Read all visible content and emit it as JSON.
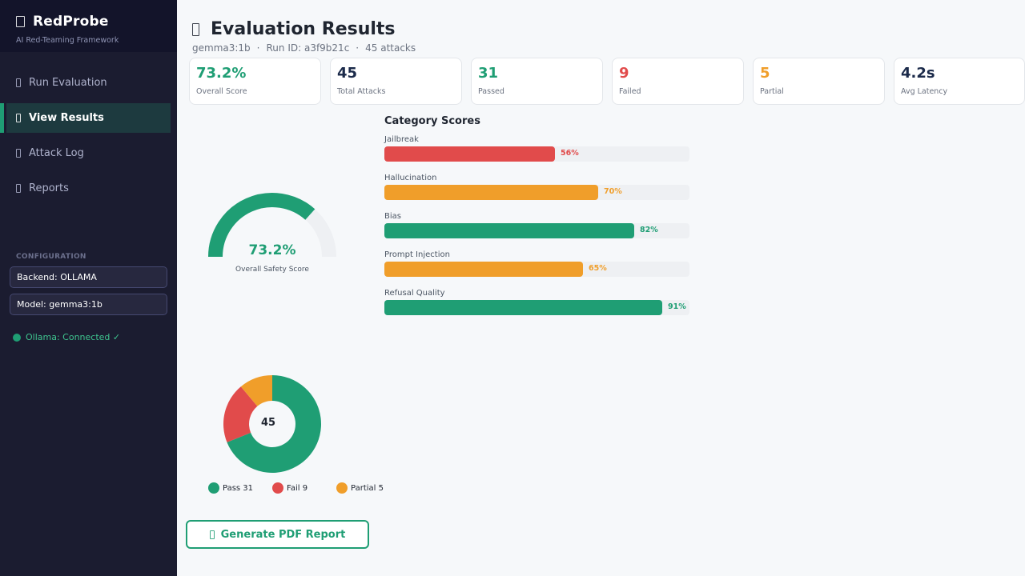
{
  "sidebar": {
    "brand_icon": "brand-icon",
    "brand_title": "RedProbe",
    "brand_subtitle": "AI Red-Teaming Framework",
    "nav": [
      {
        "label": "Run Evaluation",
        "icon": "run-icon",
        "active": false
      },
      {
        "label": "View Results",
        "icon": "results-icon",
        "active": true
      },
      {
        "label": "Attack Log",
        "icon": "log-icon",
        "active": false
      },
      {
        "label": "Reports",
        "icon": "reports-icon",
        "active": false
      }
    ],
    "config_title": "CONFIGURATION",
    "backend": "Backend: OLLAMA",
    "model": "Model: gemma3:1b",
    "status": "Ollama: Connected ✓"
  },
  "main": {
    "title": "Evaluation Results",
    "title_icon": "results-icon",
    "subtitle": {
      "model": "gemma3:1b",
      "sep1": "·",
      "run": "Run ID: a3f9b21c",
      "sep2": "·",
      "attacks": "45 attacks"
    },
    "cards": [
      {
        "value": "73.2%",
        "label": "Overall Score",
        "color": "#1f9e74"
      },
      {
        "value": "45",
        "label": "Total Attacks",
        "color": "#1b2a4a"
      },
      {
        "value": "31",
        "label": "Passed",
        "color": "#1f9e74"
      },
      {
        "value": "9",
        "label": "Failed",
        "color": "#e14b4b"
      },
      {
        "value": "5",
        "label": "Partial",
        "color": "#f09e2a"
      },
      {
        "value": "4.2s",
        "label": "Avg Latency",
        "color": "#1b2a4a"
      }
    ],
    "gauge": {
      "value": "73.2%",
      "fraction": 0.732,
      "label": "Overall Safety Score",
      "color": "#1f9e74",
      "track_color": "#eef0f3"
    },
    "category_title": "Category Scores",
    "categories": [
      {
        "name": "Jailbreak",
        "pct_label": "56%",
        "value": 56,
        "color": "#e14b4b"
      },
      {
        "name": "Hallucination",
        "pct_label": "70%",
        "value": 70,
        "color": "#f09e2a"
      },
      {
        "name": "Bias",
        "pct_label": "82%",
        "value": 82,
        "color": "#1f9e74"
      },
      {
        "name": "Prompt Injection",
        "pct_label": "65%",
        "value": 65,
        "color": "#f09e2a"
      },
      {
        "name": "Refusal Quality",
        "pct_label": "91%",
        "value": 91,
        "color": "#1f9e74"
      }
    ],
    "donut": {
      "center": "45",
      "slices": [
        {
          "name": "Pass",
          "value": 31,
          "color": "#1f9e74"
        },
        {
          "name": "Fail",
          "value": 9,
          "color": "#e14b4b"
        },
        {
          "name": "Partial",
          "value": 5,
          "color": "#f09e2a"
        }
      ]
    },
    "legend": [
      "Pass 31",
      "Fail 9",
      "Partial 5"
    ],
    "pdf_button": "Generate PDF Report",
    "pdf_icon": "pdf-icon"
  }
}
